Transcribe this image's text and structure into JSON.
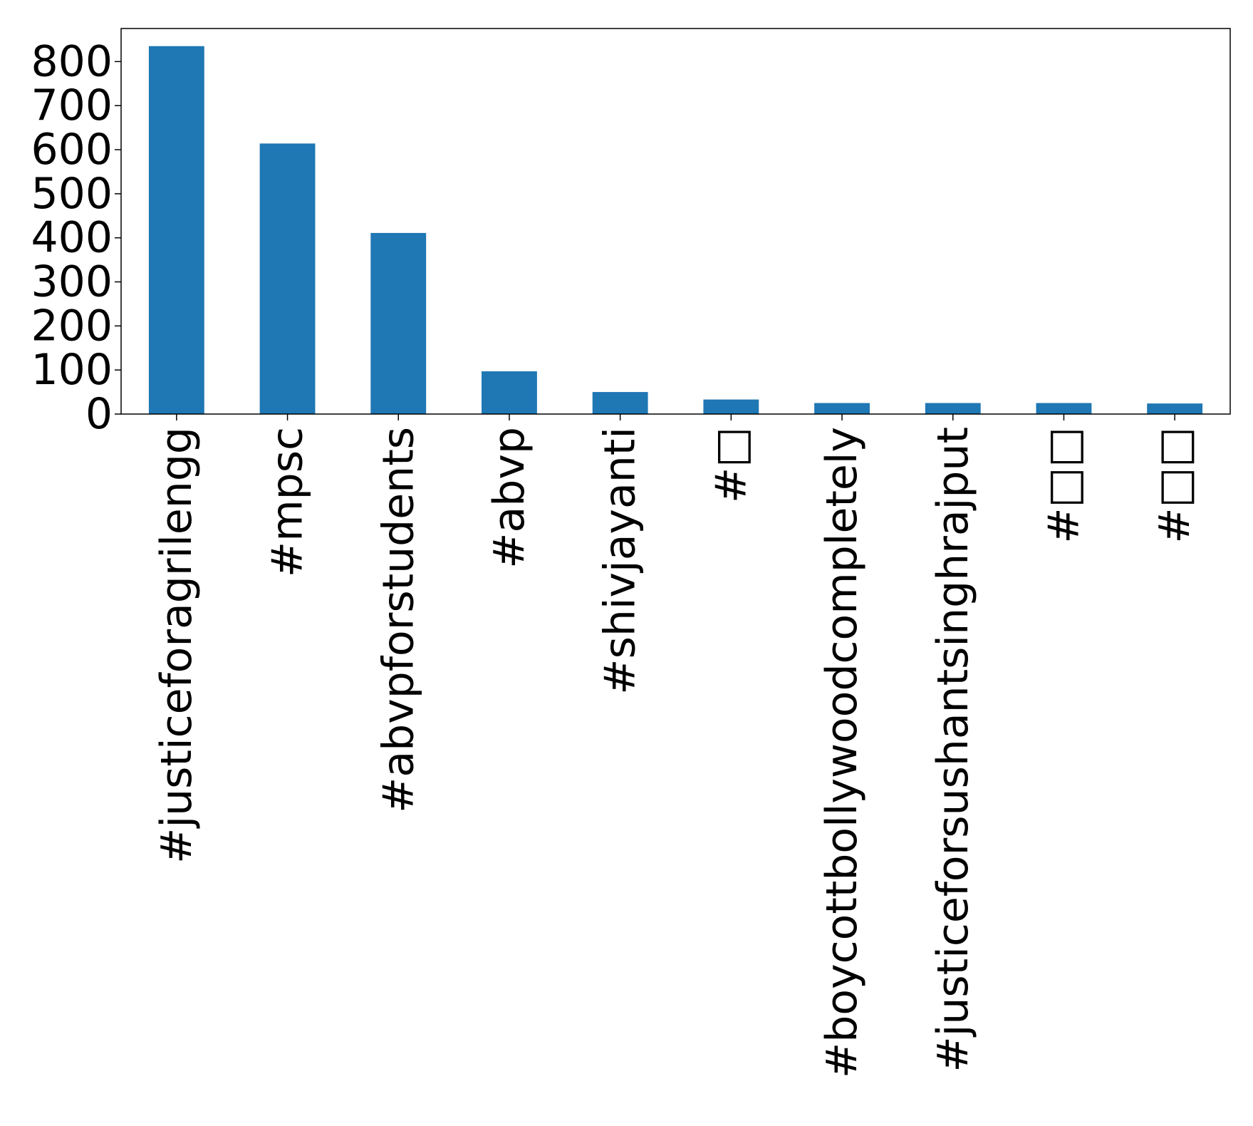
{
  "chart_data": {
    "type": "bar",
    "title": "",
    "xlabel": "",
    "ylabel": "",
    "categories": [
      "#justiceforagrilengg",
      "#mpsc",
      "#abvpforstudents",
      "#abvp",
      "#shivjayanti",
      "#□",
      "#boycottbollywoodcompletely",
      "#justiceforsushantsinghrajput",
      "#□□",
      "#□□"
    ],
    "values": [
      835,
      614,
      411,
      97,
      50,
      33,
      25,
      25,
      25,
      24
    ],
    "ylim": [
      0,
      875
    ],
    "yticks": [
      0,
      100,
      200,
      300,
      400,
      500,
      600,
      700,
      800
    ],
    "bar_color": "#1f77b4",
    "grid": false,
    "legend": "none"
  }
}
